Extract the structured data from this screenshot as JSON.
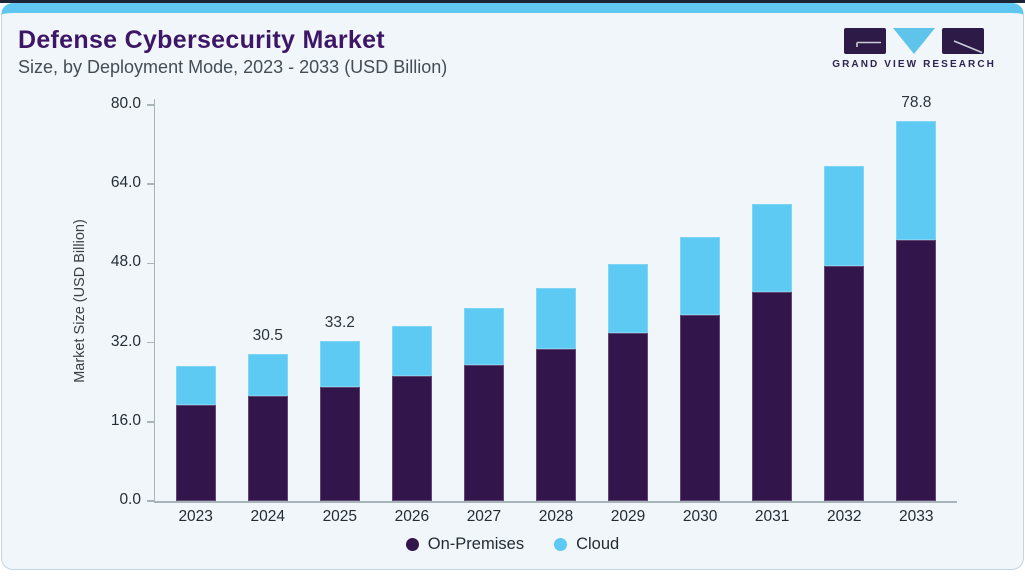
{
  "header": {
    "title": "Defense Cybersecurity Market",
    "subtitle": "Size, by Deployment Mode, 2023 - 2033 (USD Billion)"
  },
  "logo": {
    "text": "GRAND VIEW RESEARCH",
    "mark_purple": "#2E1A47",
    "mark_blue": "#5EC4EA"
  },
  "colors": {
    "card_background": "#F0F6FA",
    "card_border": "#C6D4DE",
    "top_accent_blue": "#60C8F0",
    "top_accent_navy": "#1C2435",
    "title_purple": "#3D1766",
    "axis_gray": "#A9B3BA",
    "on_premises": "#32154B",
    "cloud": "#5DCAF3"
  },
  "chart_data": {
    "type": "bar",
    "stacked": true,
    "title": "Defense Cybersecurity Market Size, by Deployment Mode, 2023 - 2033 (USD Billion)",
    "categories": [
      "2023",
      "2024",
      "2025",
      "2026",
      "2027",
      "2028",
      "2029",
      "2030",
      "2031",
      "2032",
      "2033"
    ],
    "series": [
      {
        "name": "On-Premises",
        "color": "#32154B",
        "values": [
          20.0,
          21.9,
          23.7,
          25.9,
          28.3,
          31.5,
          34.8,
          38.7,
          43.3,
          48.7,
          54.1
        ]
      },
      {
        "name": "Cloud",
        "color": "#5DCAF3",
        "values": [
          8.0,
          8.6,
          9.5,
          10.4,
          11.7,
          12.7,
          14.4,
          16.1,
          18.4,
          20.8,
          24.7
        ]
      }
    ],
    "totals": [
      28.0,
      30.5,
      33.2,
      36.3,
      40.0,
      44.2,
      49.2,
      54.8,
      61.7,
      69.5,
      78.8
    ],
    "value_labels": {
      "2024": "30.5",
      "2025": "33.2",
      "2033": "78.8"
    },
    "xlabel": "",
    "ylabel": "Market Size (USD Billion)",
    "yticks": [
      "0.0",
      "16.0",
      "32.0",
      "48.0",
      "64.0",
      "80.0"
    ],
    "ytick_values": [
      0,
      16,
      32,
      48,
      64,
      80
    ],
    "ylim": [
      0,
      83
    ],
    "grid": false,
    "legend_position": "bottom-center"
  }
}
